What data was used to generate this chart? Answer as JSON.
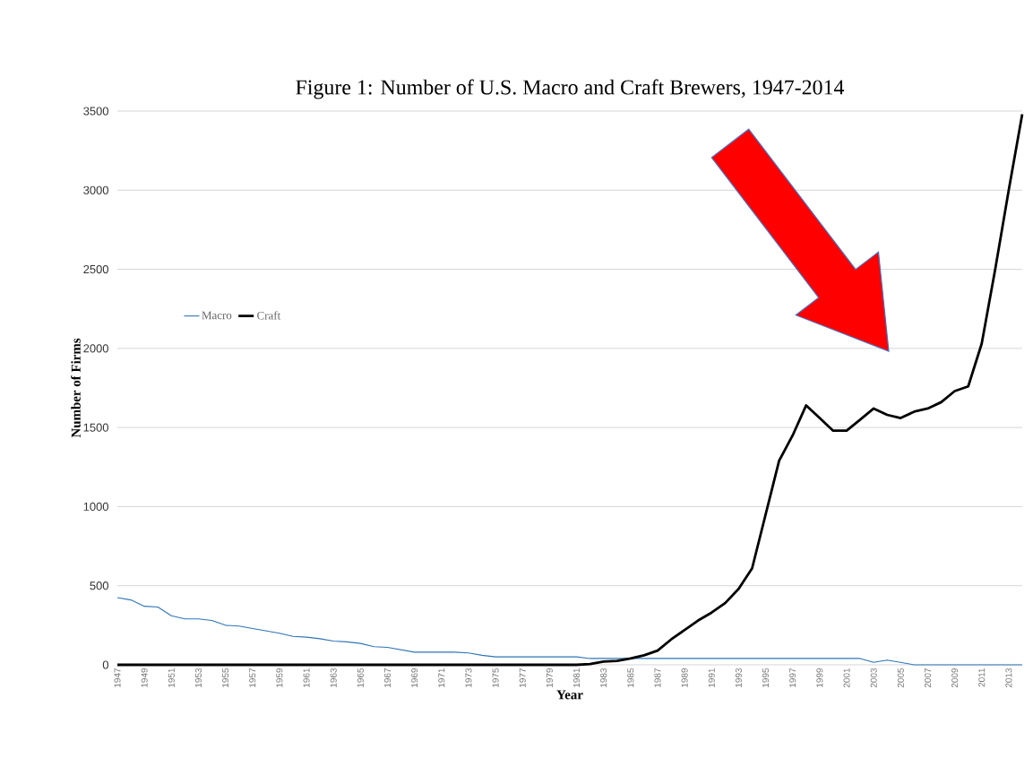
{
  "chart_data": {
    "type": "line",
    "title": "Figure 1:  Number of U.S. Macro and Craft Brewers, 1947-2014",
    "xlabel": "Year",
    "ylabel": "Number of Firms",
    "categories": [
      "1947",
      null,
      "1949",
      null,
      "1951",
      null,
      "1953",
      null,
      "1955",
      null,
      "1957",
      null,
      "1959",
      null,
      "1961",
      null,
      "1963",
      null,
      "1965",
      null,
      "1967",
      null,
      "1969",
      null,
      "1971",
      null,
      "1973",
      null,
      "1975",
      null,
      "1977",
      null,
      "1979",
      null,
      "1981",
      null,
      "1983",
      null,
      "1985",
      null,
      "1987",
      null,
      "1989",
      null,
      "1991",
      null,
      "1993",
      null,
      "1995",
      null,
      "1997",
      null,
      "1999",
      null,
      "2001",
      null,
      "2003",
      null,
      "2005",
      null,
      "2007",
      null,
      "2009",
      null,
      "2011",
      null,
      "2013",
      null
    ],
    "series": [
      {
        "name": "Macro",
        "color": "#2e75b6",
        "values": [
          425,
          410,
          370,
          365,
          310,
          290,
          290,
          280,
          250,
          245,
          230,
          215,
          200,
          180,
          175,
          165,
          150,
          145,
          135,
          115,
          110,
          95,
          80,
          80,
          80,
          80,
          75,
          60,
          50,
          50,
          50,
          50,
          50,
          50,
          50,
          40,
          40,
          40,
          40,
          40,
          40,
          40,
          40,
          40,
          40,
          40,
          40,
          40,
          40,
          40,
          40,
          40,
          40,
          40,
          40,
          40,
          15,
          30,
          15,
          0,
          0,
          0,
          0,
          0,
          0,
          0,
          0,
          0
        ]
      },
      {
        "name": "Craft",
        "color": "#000000",
        "values": [
          0,
          0,
          0,
          0,
          0,
          0,
          0,
          0,
          0,
          0,
          0,
          0,
          0,
          0,
          0,
          0,
          0,
          0,
          0,
          0,
          0,
          0,
          0,
          0,
          0,
          0,
          0,
          0,
          0,
          0,
          0,
          0,
          0,
          0,
          0,
          5,
          20,
          25,
          40,
          60,
          90,
          160,
          220,
          280,
          330,
          390,
          480,
          610,
          950,
          1290,
          1450,
          1640,
          1560,
          1480,
          1480,
          1550,
          1620,
          1580,
          1560,
          1600,
          1620,
          1660,
          1730,
          1760,
          2030,
          2500,
          3000,
          3480
        ]
      }
    ],
    "ylim": [
      0,
      3500
    ],
    "yticks": [
      0,
      500,
      1000,
      1500,
      2000,
      2500,
      3000,
      3500
    ],
    "grid": "y",
    "legend": "left"
  }
}
